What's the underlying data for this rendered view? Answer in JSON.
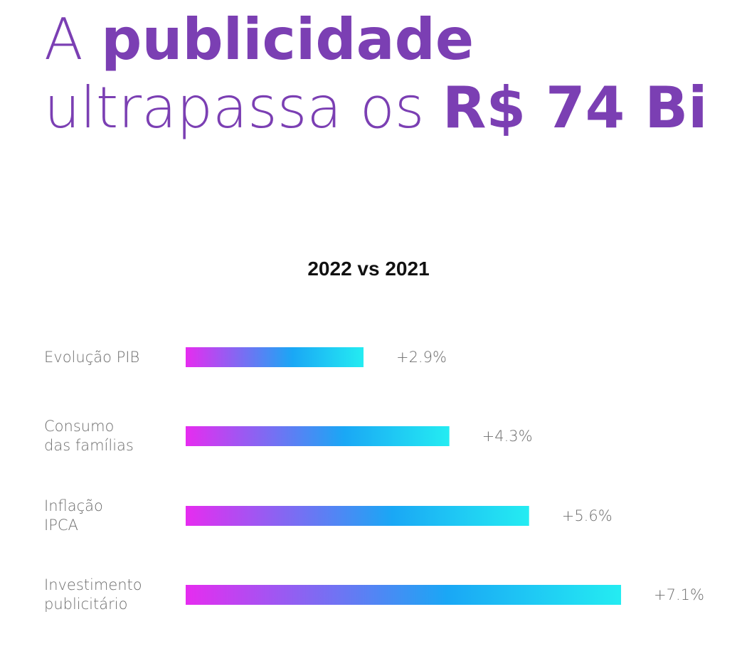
{
  "headline": {
    "line1_light": "A",
    "line1_bold": "publicidade",
    "line2_light": "ultrapassa os",
    "line2_bold": "R$ 74 Bi"
  },
  "colors": {
    "headline": "#7b3fb3",
    "bar_start": "#e62cf0",
    "bar_mid": "#1aa7f5",
    "bar_end": "#24ecf2",
    "label_text": "#6e6e6e"
  },
  "chart_data": {
    "type": "bar",
    "orientation": "horizontal",
    "title": "2022 vs 2021",
    "categories": [
      "Evolução PIB",
      "Consumo\ndas famílias",
      "Inflação\nIPCA",
      "Investimento\npublicitário"
    ],
    "values": [
      2.9,
      4.3,
      5.6,
      7.1
    ],
    "value_labels": [
      "+2.9%",
      "+4.3%",
      "+5.6%",
      "+7.1%"
    ],
    "grid": false,
    "legend": "none"
  }
}
